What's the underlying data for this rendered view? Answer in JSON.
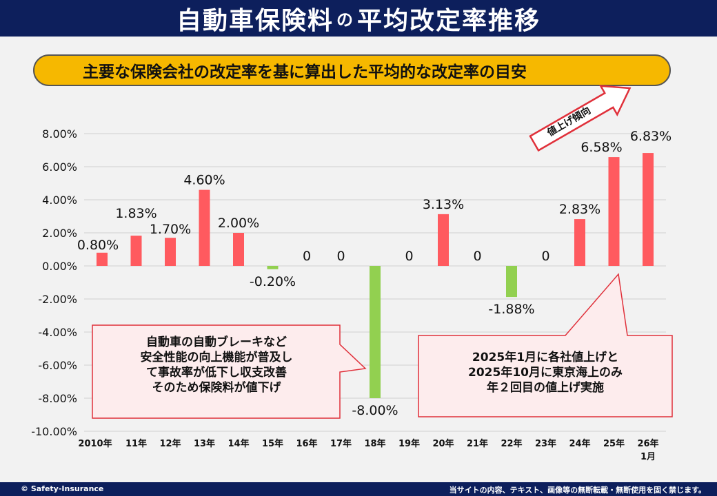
{
  "header": {
    "title_a": "自動車保険料",
    "title_no": "の",
    "title_b": "平均改定率推移"
  },
  "subtitle": "主要な保険会社の改定率を基に算出した平均的な改定率の目安",
  "watermark": "©Safety-Insurance",
  "trend_label": "値上げ傾向",
  "callouts": {
    "left": [
      "自動車の自動ブレーキなど",
      "安全性能の向上機能が普及し",
      "て事故率が低下し収支改善",
      "そのため保険料が値下げ"
    ],
    "right": [
      "2025年1月に各社値上げと",
      "2025年10月に東京海上のみ",
      "年２回目の値上げ実施"
    ]
  },
  "footer": {
    "left": "© Safety-Insurance",
    "right": "当サイトの内容、テキスト、画像等の無断転載・無断使用を固く禁じます。"
  },
  "colors": {
    "positive": "#ff5a5f",
    "negative": "#92d050",
    "header": "#0d1f5c",
    "pill": "#f6b800"
  },
  "chart_data": {
    "type": "bar",
    "categories": [
      "2010年",
      "11年",
      "12年",
      "13年",
      "14年",
      "15年",
      "16年",
      "17年",
      "18年",
      "19年",
      "20年",
      "21年",
      "22年",
      "23年",
      "24年",
      "25年",
      "26年\n1月"
    ],
    "values": [
      0.8,
      1.83,
      1.7,
      4.6,
      2.0,
      -0.2,
      0,
      0,
      -8.0,
      0,
      3.13,
      0,
      -1.88,
      0,
      2.83,
      6.58,
      6.83
    ],
    "data_labels": [
      "0.80%",
      "1.83%",
      "1.70%",
      "4.60%",
      "2.00%",
      "-0.20%",
      "0",
      "0",
      "-8.00%",
      "0",
      "3.13%",
      "0",
      "-1.88%",
      "0",
      "2.83%",
      "6.58%",
      "6.83%"
    ],
    "yticks": [
      "8.00%",
      "6.00%",
      "4.00%",
      "2.00%",
      "0.00%",
      "-2.00%",
      "-4.00%",
      "-6.00%",
      "-8.00%",
      "-10.00%"
    ],
    "ylim": [
      -10,
      8
    ],
    "grid": true,
    "xlabel": "",
    "ylabel": ""
  }
}
